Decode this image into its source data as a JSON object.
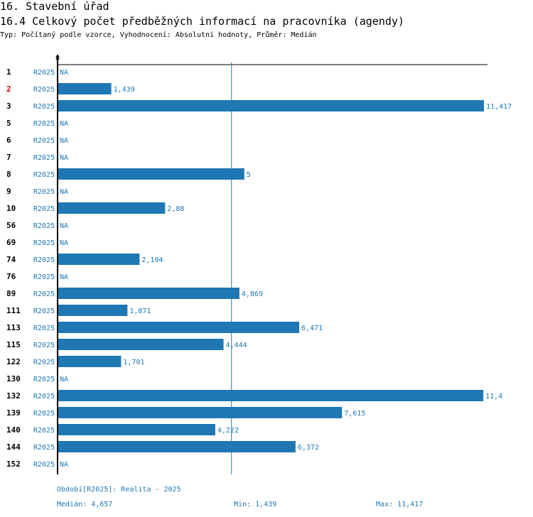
{
  "title": "16. Stavební úřad",
  "subtitle": "16.4 Celkový počet předběžných informací na pracovníka (agendy)",
  "type_line": "Typ: Počítaný podle vzorce, Vyhodnocení: Absolutní hodnoty, Průměr: Medián",
  "colors": {
    "bar": "#1f77b4",
    "highlight": "#cc0000",
    "text": "#000000"
  },
  "chart_data": {
    "type": "bar",
    "orientation": "horizontal",
    "axis_zero_label": "0",
    "xlim": [
      0,
      11.417
    ],
    "median_line": 4.657,
    "highlight_category": "2",
    "rows": [
      {
        "id": "1",
        "period": "R2025",
        "value": null,
        "label": "NA"
      },
      {
        "id": "2",
        "period": "R2025",
        "value": 1.439,
        "label": "1,439"
      },
      {
        "id": "3",
        "period": "R2025",
        "value": 11.417,
        "label": "11,417"
      },
      {
        "id": "5",
        "period": "R2025",
        "value": null,
        "label": "NA"
      },
      {
        "id": "6",
        "period": "R2025",
        "value": null,
        "label": "NA"
      },
      {
        "id": "7",
        "period": "R2025",
        "value": null,
        "label": "NA"
      },
      {
        "id": "8",
        "period": "R2025",
        "value": 5,
        "label": "5"
      },
      {
        "id": "9",
        "period": "R2025",
        "value": null,
        "label": "NA"
      },
      {
        "id": "10",
        "period": "R2025",
        "value": 2.88,
        "label": "2,88"
      },
      {
        "id": "56",
        "period": "R2025",
        "value": null,
        "label": "NA"
      },
      {
        "id": "69",
        "period": "R2025",
        "value": null,
        "label": "NA"
      },
      {
        "id": "74",
        "period": "R2025",
        "value": 2.194,
        "label": "2,194"
      },
      {
        "id": "76",
        "period": "R2025",
        "value": null,
        "label": "NA"
      },
      {
        "id": "89",
        "period": "R2025",
        "value": 4.869,
        "label": "4,869"
      },
      {
        "id": "111",
        "period": "R2025",
        "value": 1.871,
        "label": "1,871"
      },
      {
        "id": "113",
        "period": "R2025",
        "value": 6.471,
        "label": "6,471"
      },
      {
        "id": "115",
        "period": "R2025",
        "value": 4.444,
        "label": "4,444"
      },
      {
        "id": "122",
        "period": "R2025",
        "value": 1.701,
        "label": "1,701"
      },
      {
        "id": "130",
        "period": "R2025",
        "value": null,
        "label": "NA"
      },
      {
        "id": "132",
        "period": "R2025",
        "value": 11.4,
        "label": "11,4"
      },
      {
        "id": "139",
        "period": "R2025",
        "value": 7.615,
        "label": "7,615"
      },
      {
        "id": "140",
        "period": "R2025",
        "value": 4.222,
        "label": "4,222"
      },
      {
        "id": "144",
        "period": "R2025",
        "value": 6.372,
        "label": "6,372"
      },
      {
        "id": "152",
        "period": "R2025",
        "value": null,
        "label": "NA"
      }
    ]
  },
  "footer": {
    "period": "Období[R2025]: Realita - 2025",
    "median": "Medián: 4,657",
    "min": "Min: 1,439",
    "max": "Max: 11,417"
  }
}
